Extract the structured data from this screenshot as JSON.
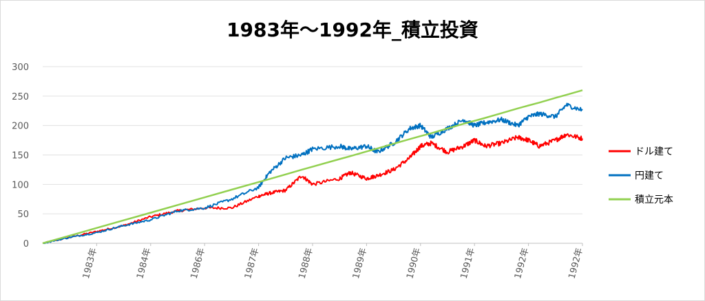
{
  "chart_data": {
    "type": "line",
    "title": "1983年～1992年_積立投資",
    "xlabel": "",
    "ylabel": "",
    "ylim": [
      0,
      300
    ],
    "yticks": [
      "0",
      "50",
      "100",
      "150",
      "200",
      "250",
      "300"
    ],
    "x_tick_labels": [
      "1983年",
      "1984年",
      "1986年",
      "1987年",
      "1988年",
      "1989年",
      "1990年",
      "1991年",
      "1992年",
      "1992年"
    ],
    "x_tick_positions": [
      0.1,
      0.2,
      0.3,
      0.4,
      0.5,
      0.6,
      0.7,
      0.8,
      0.9,
      1.0
    ],
    "x": [
      0,
      0.05,
      0.1,
      0.15,
      0.2,
      0.25,
      0.3,
      0.35,
      0.4,
      0.42,
      0.45,
      0.48,
      0.5,
      0.55,
      0.57,
      0.6,
      0.62,
      0.65,
      0.68,
      0.7,
      0.72,
      0.75,
      0.78,
      0.8,
      0.82,
      0.85,
      0.88,
      0.9,
      0.92,
      0.95,
      0.97,
      1.0
    ],
    "grid": true,
    "legend_position": "right",
    "series": [
      {
        "name": "ドル建て",
        "color": "#ff0000",
        "values": [
          0,
          10,
          20,
          30,
          45,
          55,
          60,
          60,
          80,
          85,
          90,
          115,
          100,
          110,
          120,
          110,
          115,
          125,
          145,
          165,
          170,
          155,
          165,
          175,
          165,
          170,
          180,
          175,
          165,
          175,
          185,
          178
        ]
      },
      {
        "name": "円建て",
        "color": "#0070c0",
        "values": [
          0,
          10,
          18,
          30,
          40,
          55,
          60,
          75,
          95,
          120,
          145,
          150,
          160,
          165,
          160,
          165,
          155,
          170,
          195,
          200,
          180,
          195,
          210,
          200,
          205,
          210,
          200,
          215,
          220,
          215,
          235,
          226
        ]
      },
      {
        "name": "積立元本",
        "color": "#92d050",
        "values": [
          0,
          13,
          26,
          39,
          52,
          65,
          78,
          91,
          104,
          109,
          117,
          125,
          130,
          143,
          148,
          156,
          161,
          169,
          177,
          182,
          187,
          195,
          203,
          208,
          213,
          221,
          229,
          234,
          239,
          247,
          252,
          260
        ]
      }
    ]
  }
}
